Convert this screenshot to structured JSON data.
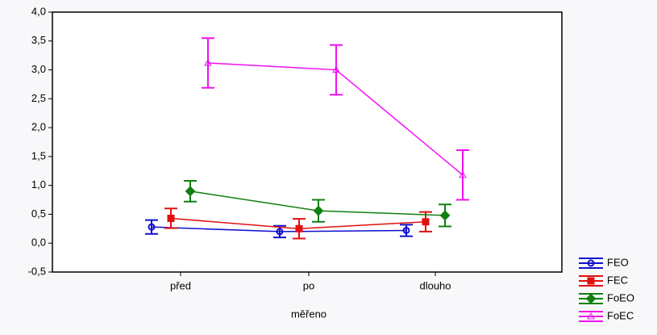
{
  "chart_data": {
    "type": "errorbar-line",
    "x_label": "měřeno",
    "categories": [
      "před",
      "po",
      "dlouho"
    ],
    "ylim": [
      -0.5,
      4.0
    ],
    "yticks": [
      {
        "value": -0.5,
        "label": "-0,5"
      },
      {
        "value": 0,
        "label": "0,0"
      },
      {
        "value": 0.5,
        "label": "0,5"
      },
      {
        "value": 1.0,
        "label": "1,0"
      },
      {
        "value": 1.5,
        "label": "1,5"
      },
      {
        "value": 2.0,
        "label": "2,0"
      },
      {
        "value": 2.5,
        "label": "2,5"
      },
      {
        "value": 3.0,
        "label": "3,0"
      },
      {
        "value": 3.5,
        "label": "3,5"
      },
      {
        "value": 4.0,
        "label": "4,0"
      }
    ],
    "legend": "bottom-right",
    "series": [
      {
        "name": "FEO",
        "color": "#1010d0",
        "marker": "circle",
        "values": [
          0.28,
          0.2,
          0.22
        ],
        "errors": [
          0.12,
          0.1,
          0.1
        ]
      },
      {
        "name": "FEC",
        "color": "#e01010",
        "marker": "square",
        "values": [
          0.43,
          0.25,
          0.37
        ],
        "errors": [
          0.17,
          0.17,
          0.17
        ]
      },
      {
        "name": "FoEO",
        "color": "#108010",
        "marker": "diamond",
        "values": [
          0.9,
          0.56,
          0.48
        ],
        "errors": [
          0.18,
          0.19,
          0.19
        ]
      },
      {
        "name": "FoEC",
        "color": "#f010f0",
        "marker": "triangle",
        "values": [
          3.12,
          3.0,
          1.18
        ],
        "errors": [
          0.43,
          0.43,
          0.43
        ]
      }
    ]
  }
}
